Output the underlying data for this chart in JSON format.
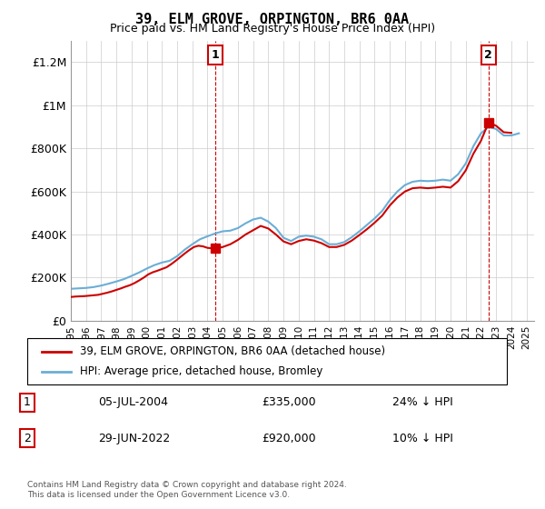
{
  "title": "39, ELM GROVE, ORPINGTON, BR6 0AA",
  "subtitle": "Price paid vs. HM Land Registry's House Price Index (HPI)",
  "ylabel_ticks": [
    "£0",
    "£200K",
    "£400K",
    "£600K",
    "£800K",
    "£1M",
    "£1.2M"
  ],
  "ytick_values": [
    0,
    200000,
    400000,
    600000,
    800000,
    1000000,
    1200000
  ],
  "ylim": [
    0,
    1300000
  ],
  "xlim_start": 1995.0,
  "xlim_end": 2025.5,
  "hpi_color": "#6baed6",
  "price_color": "#cc0000",
  "marker_color": "#cc0000",
  "grid_color": "#cccccc",
  "bg_color": "#ffffff",
  "legend_label_red": "39, ELM GROVE, ORPINGTON, BR6 0AA (detached house)",
  "legend_label_blue": "HPI: Average price, detached house, Bromley",
  "annotation1_label": "1",
  "annotation1_date": "05-JUL-2004",
  "annotation1_price": "£335,000",
  "annotation1_note": "24% ↓ HPI",
  "annotation2_label": "2",
  "annotation2_date": "29-JUN-2022",
  "annotation2_price": "£920,000",
  "annotation2_note": "10% ↓ HPI",
  "footer": "Contains HM Land Registry data © Crown copyright and database right 2024.\nThis data is licensed under the Open Government Licence v3.0.",
  "sale1_x": 2004.5,
  "sale1_y": 335000,
  "sale2_x": 2022.5,
  "sale2_y": 920000,
  "hpi_x": [
    1995,
    1995.5,
    1996,
    1996.5,
    1997,
    1997.5,
    1998,
    1998.5,
    1999,
    1999.5,
    2000,
    2000.5,
    2001,
    2001.5,
    2002,
    2002.5,
    2003,
    2003.5,
    2004,
    2004.5,
    2005,
    2005.5,
    2006,
    2006.5,
    2007,
    2007.5,
    2008,
    2008.5,
    2009,
    2009.5,
    2010,
    2010.5,
    2011,
    2011.5,
    2012,
    2012.5,
    2013,
    2013.5,
    2014,
    2014.5,
    2015,
    2015.5,
    2016,
    2016.5,
    2017,
    2017.5,
    2018,
    2018.5,
    2019,
    2019.5,
    2020,
    2020.5,
    2021,
    2021.5,
    2022,
    2022.5,
    2023,
    2023.5,
    2024,
    2024.5
  ],
  "hpi_y": [
    148000,
    150000,
    152000,
    156000,
    163000,
    172000,
    182000,
    193000,
    208000,
    224000,
    242000,
    258000,
    270000,
    278000,
    300000,
    330000,
    355000,
    378000,
    392000,
    405000,
    415000,
    418000,
    430000,
    452000,
    470000,
    478000,
    460000,
    430000,
    385000,
    370000,
    390000,
    395000,
    390000,
    378000,
    355000,
    355000,
    365000,
    388000,
    415000,
    445000,
    475000,
    510000,
    560000,
    600000,
    630000,
    645000,
    650000,
    648000,
    650000,
    655000,
    650000,
    680000,
    730000,
    810000,
    870000,
    900000,
    890000,
    860000,
    860000,
    870000
  ],
  "price_x": [
    1995,
    1995.3,
    1995.6,
    1995.9,
    1996.2,
    1996.5,
    1996.8,
    1997.1,
    1997.4,
    1997.7,
    1998,
    1998.3,
    1998.6,
    1998.9,
    1999.2,
    1999.5,
    1999.8,
    2000.1,
    2000.4,
    2000.7,
    2001,
    2001.3,
    2001.6,
    2001.9,
    2002.2,
    2002.5,
    2002.8,
    2003.1,
    2003.4,
    2003.7,
    2004,
    2004.5,
    2005,
    2005.5,
    2006,
    2006.5,
    2007,
    2007.5,
    2008,
    2008.5,
    2009,
    2009.5,
    2010,
    2010.5,
    2011,
    2011.5,
    2012,
    2012.5,
    2013,
    2013.5,
    2014,
    2014.5,
    2015,
    2015.5,
    2016,
    2016.5,
    2017,
    2017.5,
    2018,
    2018.5,
    2019,
    2019.5,
    2020,
    2020.5,
    2021,
    2021.5,
    2022,
    2022.5,
    2023,
    2023.5,
    2024
  ],
  "price_y": [
    110000,
    112000,
    113000,
    114000,
    116000,
    118000,
    120000,
    125000,
    130000,
    136000,
    143000,
    150000,
    158000,
    165000,
    175000,
    187000,
    200000,
    215000,
    225000,
    232000,
    240000,
    248000,
    262000,
    278000,
    295000,
    312000,
    328000,
    342000,
    348000,
    345000,
    338000,
    335000,
    342000,
    355000,
    375000,
    400000,
    420000,
    440000,
    428000,
    400000,
    368000,
    355000,
    370000,
    378000,
    372000,
    360000,
    342000,
    342000,
    352000,
    372000,
    398000,
    425000,
    455000,
    488000,
    535000,
    572000,
    600000,
    615000,
    618000,
    615000,
    618000,
    622000,
    618000,
    648000,
    698000,
    775000,
    835000,
    920000,
    905000,
    875000,
    872000
  ]
}
